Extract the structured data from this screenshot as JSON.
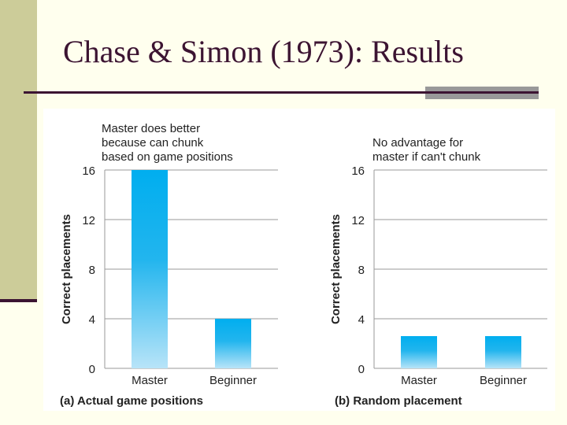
{
  "slide": {
    "title": "Chase & Simon (1973): Results",
    "colors": {
      "background": "#ffffee",
      "sidebar": "#cccc99",
      "title": "#3c1432",
      "bar_top": "#00aeef",
      "bar_bottom": "#b8e4f8"
    }
  },
  "chart_data": [
    {
      "type": "bar",
      "caption": "(a) Actual game positions",
      "annotation": [
        "Master does better",
        "because can chunk",
        "based on game positions"
      ],
      "ylabel": "Correct placements",
      "xlabel": "",
      "categories": [
        "Master",
        "Beginner"
      ],
      "values": [
        16,
        4
      ],
      "ylim": [
        0,
        16
      ],
      "yticks": [
        0,
        4,
        8,
        12,
        16
      ],
      "grid": true
    },
    {
      "type": "bar",
      "caption": "(b) Random placement",
      "annotation": [
        "No advantage for",
        "master if can't chunk"
      ],
      "ylabel": "Correct placements",
      "xlabel": "",
      "categories": [
        "Master",
        "Beginner"
      ],
      "values": [
        2.6,
        2.6
      ],
      "ylim": [
        0,
        16
      ],
      "yticks": [
        0,
        4,
        8,
        12,
        16
      ],
      "grid": true
    }
  ]
}
